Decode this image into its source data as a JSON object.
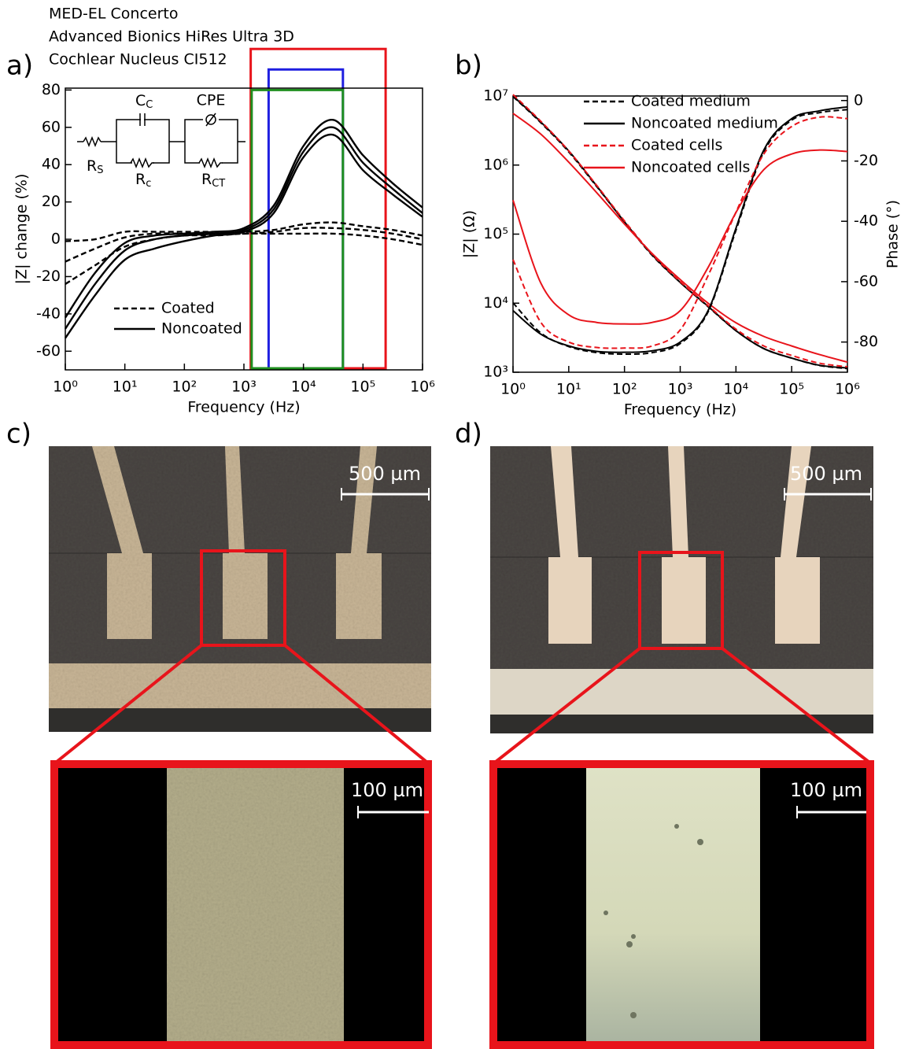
{
  "chart_data": [
    {
      "type": "line",
      "panel": "a)",
      "x": [
        1,
        3.16,
        10,
        31.6,
        100,
        316,
        1000,
        3162,
        10000,
        31623,
        100000,
        316228,
        1000000
      ],
      "x_log": true,
      "y_log": false,
      "xlim": [
        1,
        1000000
      ],
      "ylim": [
        -70,
        81
      ],
      "xticks": [
        {
          "value": 1,
          "label": "10⁰"
        },
        {
          "value": 10,
          "label": "10¹"
        },
        {
          "value": 100,
          "label": "10²"
        },
        {
          "value": 1000,
          "label": "10³"
        },
        {
          "value": 10000,
          "label": "10⁴"
        },
        {
          "value": 100000,
          "label": "10⁵"
        },
        {
          "value": 1000000,
          "label": "10⁶"
        }
      ],
      "yticks": [
        -60,
        -40,
        -20,
        0,
        20,
        40,
        60,
        80
      ],
      "x_label": "Frequency (Hz)",
      "y_label": "|Z| change (%)",
      "legend": "lower left",
      "series": [
        {
          "name": "Coated",
          "color": "#000000",
          "dash": "dashed",
          "values": [
            -1,
            0,
            4,
            4,
            4,
            4,
            4,
            5,
            8,
            9,
            7,
            5,
            2
          ]
        },
        {
          "color": "#000000",
          "dash": "dashed",
          "values": [
            -12,
            -5,
            1,
            3,
            3,
            3,
            3,
            4,
            6,
            6,
            5,
            3,
            0
          ]
        },
        {
          "color": "#000000",
          "dash": "dashed",
          "values": [
            -24,
            -14,
            -4,
            0,
            2,
            2,
            3,
            3,
            3,
            3,
            2,
            0,
            -3
          ]
        },
        {
          "name": "Noncoated",
          "color": "#000000",
          "dash": "solid",
          "values": [
            -42,
            -18,
            -2,
            2,
            3,
            4,
            6,
            18,
            50,
            64,
            45,
            30,
            17
          ]
        },
        {
          "color": "#000000",
          "dash": "solid",
          "values": [
            -48,
            -24,
            -6,
            0,
            2,
            3,
            5,
            16,
            47,
            60,
            41,
            27,
            14
          ]
        },
        {
          "color": "#000000",
          "dash": "solid",
          "values": [
            -53,
            -30,
            -11,
            -5,
            -1,
            2,
            4,
            14,
            44,
            56,
            37,
            24,
            12
          ]
        }
      ],
      "ranges": [
        {
          "name": "MED-EL Concerto",
          "color": "#e8141b",
          "x": [
            1300,
            240000
          ],
          "top": 102
        },
        {
          "name": "Advanced Bionics HiRes Ultra 3D",
          "color": "#1f1fe0",
          "x": [
            2600,
            46000
          ],
          "top": 91
        },
        {
          "name": "Cochlear Nucleus CI512",
          "color": "#1f8f1f",
          "x": [
            1350,
            46000
          ],
          "top": 80
        }
      ],
      "circuit_labels": [
        {
          "text": "R",
          "sub": "S"
        },
        {
          "text": "C",
          "sub": "C"
        },
        {
          "text": "CPE"
        },
        {
          "text": "R",
          "sub": "c"
        },
        {
          "text": "R",
          "sub": "CT"
        }
      ]
    },
    {
      "type": "line",
      "panel": "b)",
      "x": [
        1,
        3.16,
        10,
        31.6,
        100,
        316,
        1000,
        3162,
        10000,
        31623,
        100000,
        316228,
        1000000
      ],
      "x_log": true,
      "y_log": true,
      "xlim": [
        1,
        1000000
      ],
      "ylim": [
        1000,
        10000000
      ],
      "y2lim": [
        -90,
        1.5
      ],
      "xticks": [
        {
          "value": 1,
          "label": "10⁰"
        },
        {
          "value": 10,
          "label": "10¹"
        },
        {
          "value": 100,
          "label": "10²"
        },
        {
          "value": 1000,
          "label": "10³"
        },
        {
          "value": 10000,
          "label": "10⁴"
        },
        {
          "value": 100000,
          "label": "10⁵"
        },
        {
          "value": 1000000,
          "label": "10⁶"
        }
      ],
      "yticks": [
        {
          "value": 1000,
          "label": "10³"
        },
        {
          "value": 10000,
          "label": "10⁴"
        },
        {
          "value": 100000,
          "label": "10⁵"
        },
        {
          "value": 1000000,
          "label": "10⁶"
        },
        {
          "value": 10000000,
          "label": "10⁷"
        }
      ],
      "y2ticks": [
        -80,
        -60,
        -40,
        -20,
        0
      ],
      "x_label": "Frequency (Hz)",
      "y_label": "|Z| (Ω)",
      "y2_label": "Phase (°)",
      "legend": "upper left",
      "series": [
        {
          "name": "Coated medium",
          "color": "#000000",
          "dash": "dashed",
          "values": [
            9800000,
            4100000,
            1550000,
            490000,
            150000,
            49000,
            20000,
            8900,
            4000,
            2200,
            1600,
            1250,
            1130
          ]
        },
        {
          "name": "Noncoated medium",
          "color": "#000000",
          "dash": "solid",
          "values": [
            10000000,
            4200000,
            1600000,
            500000,
            150000,
            50000,
            20000,
            9000,
            4000,
            2200,
            1600,
            1260,
            1150
          ]
        },
        {
          "name": "Coated cells",
          "color": "#e8141b",
          "dash": "dashed",
          "values": [
            10500000,
            4300000,
            1600000,
            510000,
            155000,
            51000,
            20500,
            9200,
            4200,
            2400,
            1750,
            1350,
            1200
          ]
        },
        {
          "name": "Noncoated cells",
          "color": "#e8141b",
          "dash": "solid",
          "values": [
            5600000,
            2800000,
            1100000,
            400000,
            140000,
            52000,
            22000,
            10000,
            5200,
            3300,
            2400,
            1800,
            1400
          ]
        },
        {
          "color": "#000000",
          "dash": "dashed",
          "axis": "y2",
          "values": [
            -67,
            -77,
            -81.5,
            -83.5,
            -84,
            -83.5,
            -80.5,
            -70,
            -43,
            -17,
            -6.5,
            -4,
            -3
          ]
        },
        {
          "color": "#000000",
          "dash": "solid",
          "axis": "y2",
          "values": [
            -69.6,
            -77.4,
            -81.3,
            -83.1,
            -83.4,
            -82.9,
            -80,
            -69.6,
            -42.3,
            -16.4,
            -6,
            -3.4,
            -2.1
          ]
        },
        {
          "color": "#e8141b",
          "dash": "dashed",
          "axis": "y2",
          "values": [
            -52.7,
            -73.5,
            -80,
            -81.8,
            -82,
            -81.3,
            -76,
            -58,
            -37,
            -17.7,
            -8.6,
            -5.5,
            -6
          ]
        },
        {
          "color": "#e8141b",
          "dash": "solid",
          "axis": "y2",
          "values": [
            -33,
            -60.5,
            -71,
            -73.5,
            -74,
            -73.5,
            -69.6,
            -55.3,
            -37.1,
            -22.9,
            -17.7,
            -16.4,
            -16.9
          ]
        }
      ]
    }
  ],
  "micrographs": [
    {
      "label": "c)",
      "scale_bar": "500 µm",
      "zoom_scale_bar": "100 µm"
    },
    {
      "label": "d)",
      "scale_bar": "500 µm",
      "zoom_scale_bar": "100 µm"
    }
  ]
}
